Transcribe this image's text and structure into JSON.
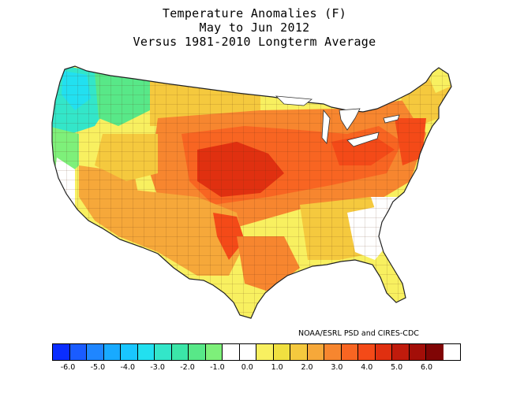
{
  "title": {
    "line1": "Temperature Anomalies (F)",
    "line2": "May to Jun 2012",
    "line3": "Versus 1981-2010 Longterm Average"
  },
  "credit": "NOAA/ESRL PSD and CIRES-CDC",
  "legend": {
    "colors": [
      "#0a2dff",
      "#1a5cff",
      "#1f86ff",
      "#18aaff",
      "#19c6ff",
      "#22e0f0",
      "#33e6c9",
      "#3be6a8",
      "#58e888",
      "#7ef07a",
      "#ffffff",
      "#ffffff",
      "#f8f060",
      "#f0e040",
      "#f5c93e",
      "#f6a83a",
      "#f7862f",
      "#f86522",
      "#f44a18",
      "#e03010",
      "#c01b0c",
      "#a30e08",
      "#800505"
    ],
    "tick_labels": [
      "-6.0",
      "-5.0",
      "-4.0",
      "-3.0",
      "-2.0",
      "-1.0",
      "0.0",
      "1.0",
      "2.0",
      "3.0",
      "4.0",
      "5.0",
      "6.0"
    ]
  },
  "regions": [
    {
      "name": "Pacific Northwest coast",
      "anomaly": -2.5
    },
    {
      "name": "Cascades / Inland Northwest",
      "anomaly": -2.0
    },
    {
      "name": "Northern Rockies",
      "anomaly": -1.0
    },
    {
      "name": "Northern California",
      "anomaly": -0.8
    },
    {
      "name": "California coast",
      "anomaly": 0.0
    },
    {
      "name": "Great Basin",
      "anomaly": 1.0
    },
    {
      "name": "Desert Southwest",
      "anomaly": 2.0
    },
    {
      "name": "Southern Rockies",
      "anomaly": 3.0
    },
    {
      "name": "Northern Plains",
      "anomaly": 1.5
    },
    {
      "name": "Central Plains",
      "anomaly": 5.0
    },
    {
      "name": "Southern Plains",
      "anomaly": 3.0
    },
    {
      "name": "Upper Midwest",
      "anomaly": 3.5
    },
    {
      "name": "Ohio Valley",
      "anomaly": 4.0
    },
    {
      "name": "Northeast",
      "anomaly": 3.0
    },
    {
      "name": "Northern New England",
      "anomaly": 1.5
    },
    {
      "name": "Southeast",
      "anomaly": 1.5
    },
    {
      "name": "Carolinas coast",
      "anomaly": 0.0
    },
    {
      "name": "Florida",
      "anomaly": 1.0
    },
    {
      "name": "Gulf Coast",
      "anomaly": 2.0
    }
  ]
}
